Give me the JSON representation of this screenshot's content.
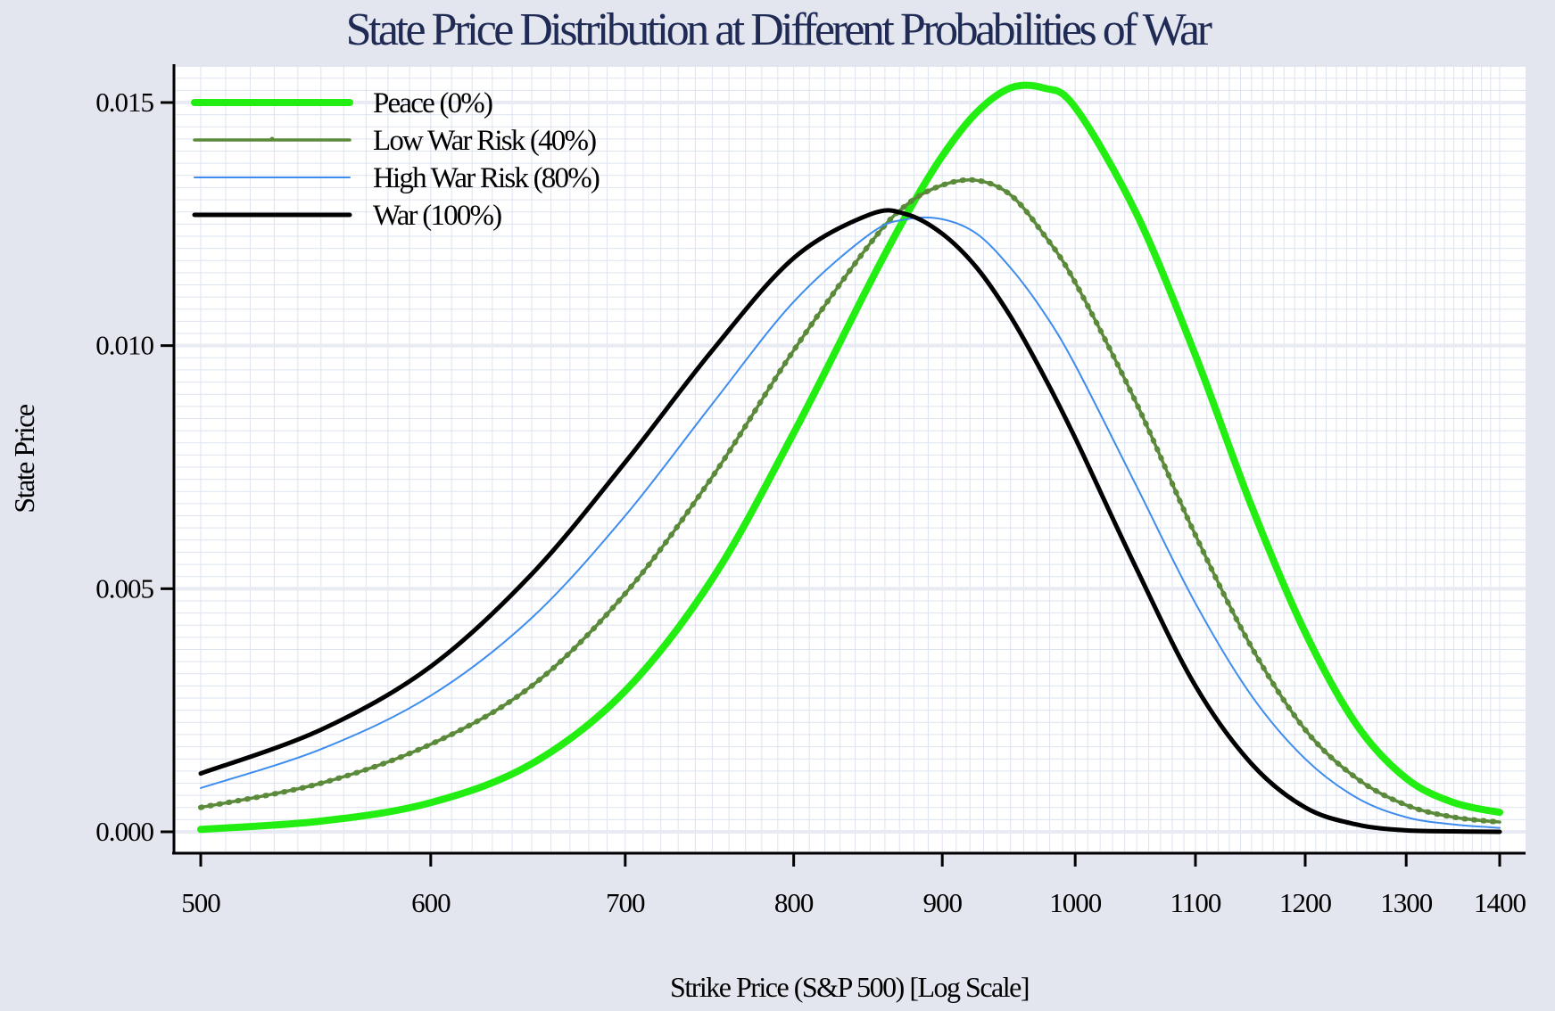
{
  "chart_data": {
    "type": "line",
    "title": "State Price Distribution at Different Probabilities of War",
    "xlabel": "Strike Price (S&P 500) [Log Scale]",
    "ylabel": "State Price",
    "x_scale": "log",
    "xlim": [
      500,
      1400
    ],
    "ylim": [
      0,
      0.0155
    ],
    "x_ticks": [
      500,
      600,
      700,
      800,
      900,
      1000,
      1100,
      1200,
      1300,
      1400
    ],
    "x_tick_labels": [
      "500",
      "600",
      "700",
      "800",
      "900",
      "1000",
      "1100",
      "1200",
      "1300",
      "1400"
    ],
    "y_ticks": [
      0,
      0.005,
      0.01,
      0.015
    ],
    "y_tick_labels": [
      "0.000",
      "0.005",
      "0.010",
      "0.015"
    ],
    "grid": true,
    "legend_position": "top-left",
    "x": [
      500,
      550,
      600,
      650,
      700,
      750,
      800,
      850,
      875,
      900,
      925,
      950,
      975,
      1000,
      1050,
      1100,
      1150,
      1200,
      1250,
      1300,
      1350,
      1400
    ],
    "series": [
      {
        "name": "Peace (0%)",
        "color": "#22ee11",
        "style": "thick",
        "values": [
          5e-05,
          0.00022,
          0.0006,
          0.0014,
          0.0029,
          0.0052,
          0.0082,
          0.0113,
          0.0127,
          0.0139,
          0.0148,
          0.0153,
          0.0153,
          0.0149,
          0.0127,
          0.0098,
          0.0067,
          0.0041,
          0.0022,
          0.0011,
          0.0006,
          0.0004
        ]
      },
      {
        "name": "Low War Risk (40%)",
        "color": "#5a8a3a",
        "style": "dotted-marker",
        "values": [
          0.0005,
          0.001,
          0.0018,
          0.003,
          0.0049,
          0.0073,
          0.0099,
          0.0121,
          0.0129,
          0.0133,
          0.0134,
          0.0131,
          0.0123,
          0.0113,
          0.0088,
          0.0061,
          0.0038,
          0.0021,
          0.0011,
          0.00055,
          0.0003,
          0.0002
        ]
      },
      {
        "name": "High War Risk (80%)",
        "color": "#3d8cee",
        "style": "thin",
        "values": [
          0.0009,
          0.0017,
          0.0028,
          0.0044,
          0.0065,
          0.0088,
          0.0109,
          0.0123,
          0.0126,
          0.0126,
          0.0123,
          0.0116,
          0.0107,
          0.0096,
          0.0071,
          0.0047,
          0.0028,
          0.0015,
          0.0007,
          0.0003,
          0.00015,
          8e-05
        ]
      },
      {
        "name": "War (100%)",
        "color": "#000000",
        "style": "medium",
        "values": [
          0.0012,
          0.0021,
          0.0034,
          0.0053,
          0.0076,
          0.0099,
          0.0118,
          0.0127,
          0.0127,
          0.0123,
          0.0116,
          0.0106,
          0.0094,
          0.0081,
          0.0054,
          0.003,
          0.0014,
          0.0005,
          0.00015,
          3e-05,
          1e-05,
          0.0
        ]
      }
    ]
  }
}
